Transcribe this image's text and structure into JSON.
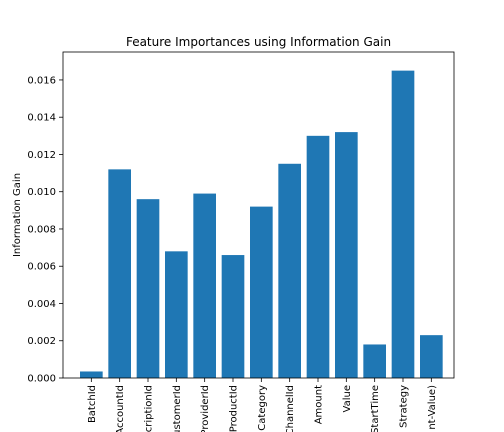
{
  "chart_data": {
    "type": "bar",
    "title": "Feature Importances using Information Gain",
    "xlabel": "",
    "ylabel": "Information Gain",
    "categories": [
      "BatchId",
      "AccountId",
      "SubscriptionId",
      "CustomerId",
      "ProviderId",
      "ProductId",
      "ProductCategory",
      "ChannelId",
      "Amount",
      "Value",
      "TransactionStartTime",
      "PricingStrategy",
      "FraudResult(Amount-Value)"
    ],
    "visible_tick_labels": [
      "BatchId",
      "AccountId",
      "scriptionId",
      "ustomerId",
      "ProviderId",
      "ProductId",
      "Category",
      "ChannelId",
      "Amount",
      "Value",
      "StartTime",
      "Strategy",
      "nt-Value)"
    ],
    "values": [
      0.00035,
      0.0112,
      0.0096,
      0.0068,
      0.0099,
      0.0066,
      0.0092,
      0.0115,
      0.013,
      0.0132,
      0.0018,
      0.0165,
      0.0023
    ],
    "ylim": [
      0,
      0.0175
    ],
    "yticks": [
      0,
      0.002,
      0.004,
      0.006,
      0.008,
      0.01,
      0.012,
      0.014,
      0.016
    ],
    "ytick_labels": [
      "0.000",
      "0.002",
      "0.004",
      "0.006",
      "0.008",
      "0.010",
      "0.012",
      "0.014",
      "0.016"
    ],
    "bar_color": "#1f77b4",
    "grid": false,
    "legend": "none"
  }
}
